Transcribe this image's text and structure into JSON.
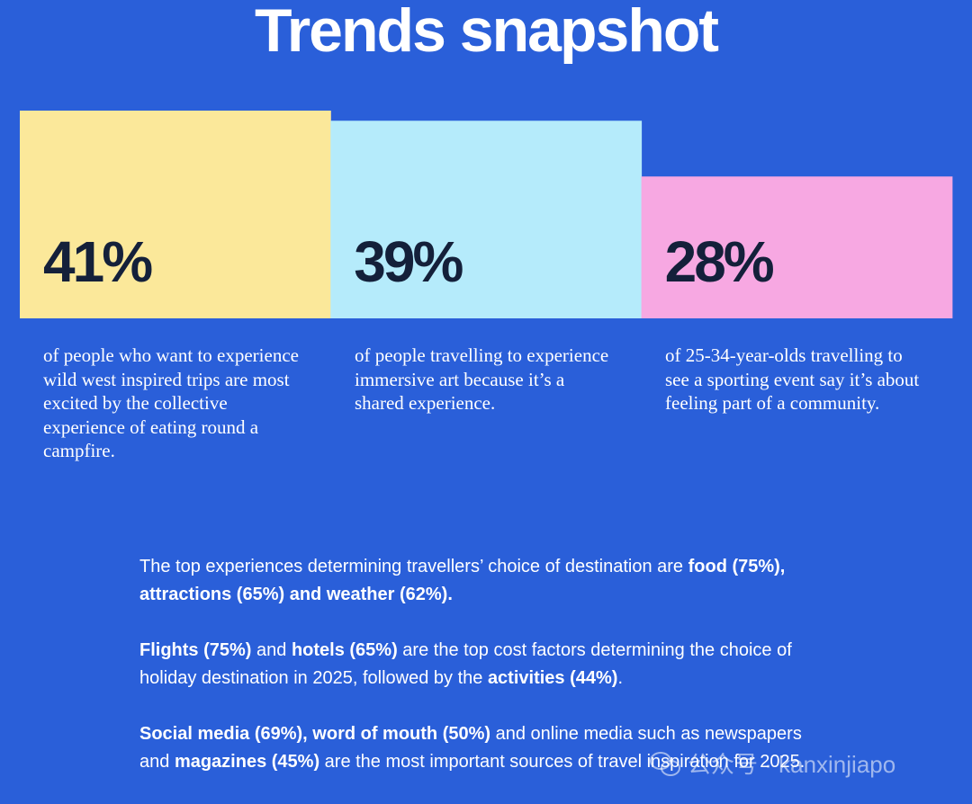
{
  "title": "Trends snapshot",
  "chart_data": {
    "type": "bar",
    "categories": [
      "41%",
      "39%",
      "28%"
    ],
    "values": [
      41,
      39,
      28
    ],
    "colors": [
      "#fbe89a",
      "#b5ebfb",
      "#f7a8e2"
    ],
    "value_label_color": "#14203a",
    "ylim": [
      0,
      41
    ],
    "descriptions": [
      "of people who want to experience wild west inspired trips are most excited by the collective experience of eating round a campfire.",
      "of people travelling to experience immersive art because it’s a shared experience.",
      "of 25-34-year-olds travelling to see a sporting event say it’s about feeling part of a community."
    ]
  },
  "findings": [
    {
      "segments": [
        {
          "text": "The top experiences determining travellers’ choice of destination are ",
          "bold": false
        },
        {
          "text": "food (75%), attractions (65%) and weather (62%).",
          "bold": true
        }
      ]
    },
    {
      "segments": [
        {
          "text": "Flights (75%)",
          "bold": true
        },
        {
          "text": " and ",
          "bold": false
        },
        {
          "text": "hotels (65%)",
          "bold": true
        },
        {
          "text": " are the top cost factors determining the choice of holiday destination in 2025, followed by the ",
          "bold": false
        },
        {
          "text": "activities (44%)",
          "bold": true
        },
        {
          "text": ".",
          "bold": false
        }
      ]
    },
    {
      "segments": [
        {
          "text": "Social media (69%), word of mouth (50%)",
          "bold": true
        },
        {
          "text": " and online media such as newspapers and ",
          "bold": false
        },
        {
          "text": "magazines (45%)",
          "bold": true
        },
        {
          "text": " are the most important sources of travel inspiration for 2025.",
          "bold": false
        }
      ]
    }
  ],
  "watermark": {
    "text": "公众号 · kanxinjiapo",
    "icon": "wechat-icon"
  }
}
